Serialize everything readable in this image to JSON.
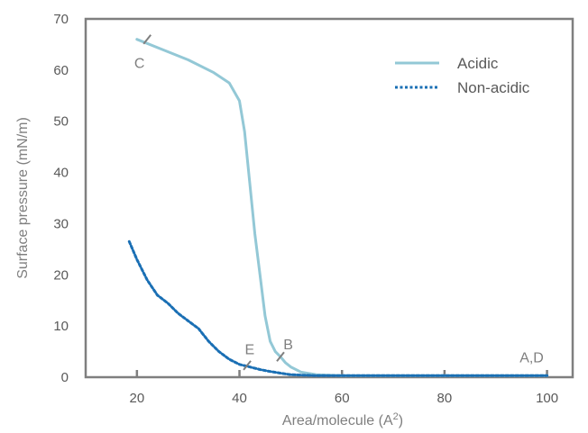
{
  "chart_data": {
    "type": "line",
    "xlabel": "Area/molecule (A²)",
    "ylabel": "Surface pressure (mN/m)",
    "xlim": [
      10,
      105
    ],
    "ylim": [
      0,
      70
    ],
    "x_ticks": [
      20,
      40,
      60,
      80,
      100
    ],
    "y_ticks": [
      0,
      10,
      20,
      30,
      40,
      50,
      60,
      70
    ],
    "grid": false,
    "legend_position": "top-right",
    "colors": {
      "acidic": "#93c8d6",
      "non_acidic": "#1a6fb4",
      "axis": "#7f7f7f"
    },
    "series": [
      {
        "name": "Acidic",
        "style": "solid",
        "points": [
          [
            20,
            66
          ],
          [
            25,
            64
          ],
          [
            30,
            62
          ],
          [
            35,
            59.5
          ],
          [
            38,
            57.5
          ],
          [
            40,
            54
          ],
          [
            41,
            48
          ],
          [
            42,
            38
          ],
          [
            43,
            28
          ],
          [
            44,
            20
          ],
          [
            45,
            12
          ],
          [
            46,
            7
          ],
          [
            47,
            5
          ],
          [
            48,
            4
          ],
          [
            49,
            2.8
          ],
          [
            50,
            2
          ],
          [
            52,
            1
          ],
          [
            55,
            0.5
          ],
          [
            60,
            0.3
          ],
          [
            80,
            0.3
          ],
          [
            100,
            0.3
          ]
        ]
      },
      {
        "name": "Non-acidic",
        "style": "dotted",
        "points": [
          [
            18.5,
            26.5
          ],
          [
            20,
            23
          ],
          [
            22,
            19
          ],
          [
            24,
            16
          ],
          [
            26,
            14.5
          ],
          [
            28,
            12.5
          ],
          [
            30,
            11
          ],
          [
            32,
            9.5
          ],
          [
            34,
            7
          ],
          [
            36,
            5
          ],
          [
            38,
            3.5
          ],
          [
            40,
            2.5
          ],
          [
            42,
            2
          ],
          [
            44,
            1.5
          ],
          [
            46,
            1.1
          ],
          [
            48,
            0.8
          ],
          [
            50,
            0.5
          ],
          [
            55,
            0.3
          ],
          [
            60,
            0.3
          ],
          [
            80,
            0.3
          ],
          [
            100,
            0.3
          ]
        ]
      }
    ],
    "annotations": [
      {
        "label": "C",
        "x": 22,
        "y": 66,
        "tx": 20.5,
        "ty": 61.5
      },
      {
        "label": "B",
        "x": 48,
        "y": 4,
        "tx": 49.5,
        "ty": 6.5
      },
      {
        "label": "E",
        "x": 41.5,
        "y": 2.3,
        "tx": 42,
        "ty": 5.5
      },
      {
        "label": "A,D",
        "x": 100,
        "y": 0.3,
        "tx": 97,
        "ty": 4
      }
    ]
  }
}
